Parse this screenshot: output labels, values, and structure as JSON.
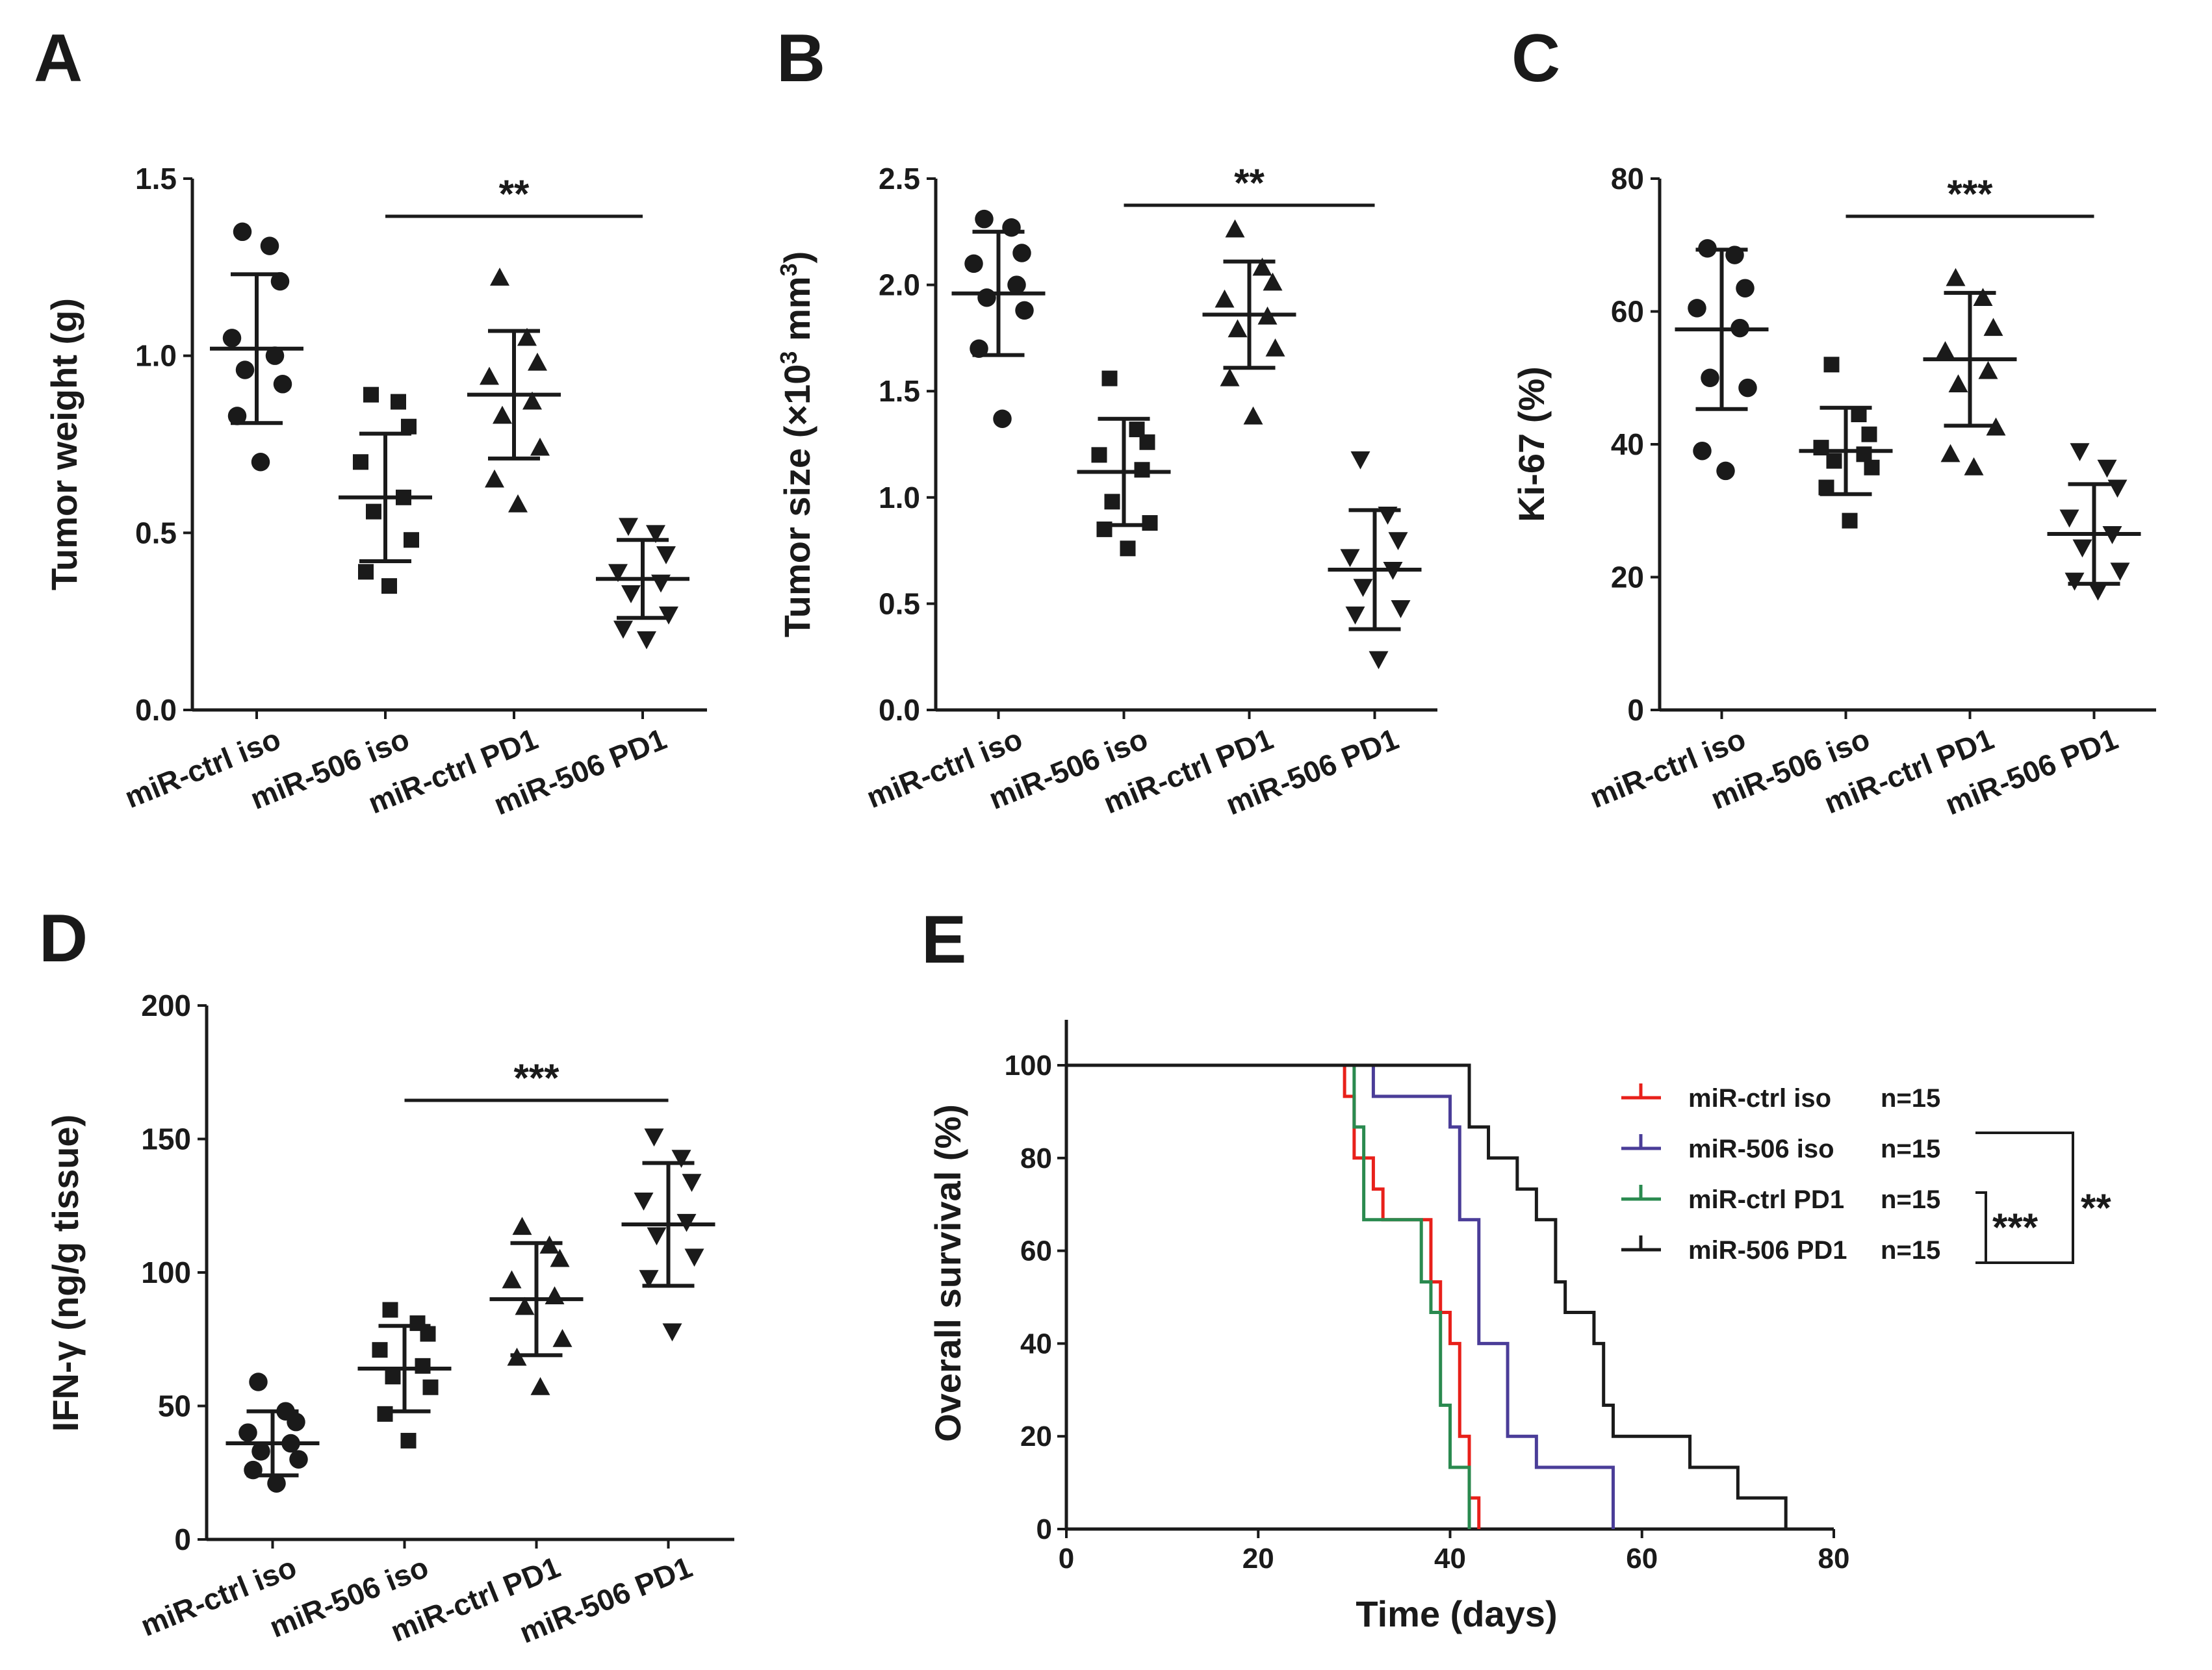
{
  "panel_labels": [
    "A",
    "B",
    "C",
    "D",
    "E"
  ],
  "chart_data": [
    {
      "panel": "A",
      "type": "scatter",
      "ylabel": "Tumor weight (g)",
      "ylim": [
        0,
        1.5
      ],
      "yticks": [
        "0.0",
        "0.5",
        "1.0",
        "1.5"
      ],
      "categories": [
        "miR-ctrl iso",
        "miR-506 iso",
        "miR-ctrl PD1",
        "miR-506 PD1"
      ],
      "markers": [
        "circle",
        "square",
        "triangle-up",
        "triangle-down"
      ],
      "series": [
        {
          "name": "miR-ctrl iso",
          "values": [
            1.35,
            1.31,
            1.21,
            1.05,
            1.0,
            0.96,
            0.92,
            0.83,
            0.7
          ],
          "mean": 1.02,
          "sd": 0.21
        },
        {
          "name": "miR-506 iso",
          "values": [
            0.89,
            0.87,
            0.8,
            0.7,
            0.6,
            0.56,
            0.48,
            0.39,
            0.35
          ],
          "mean": 0.6,
          "sd": 0.18
        },
        {
          "name": "miR-ctrl PD1",
          "values": [
            1.22,
            1.05,
            0.98,
            0.94,
            0.87,
            0.83,
            0.74,
            0.65,
            0.58
          ],
          "mean": 0.89,
          "sd": 0.18
        },
        {
          "name": "miR-506 PD1",
          "values": [
            0.52,
            0.5,
            0.44,
            0.39,
            0.36,
            0.33,
            0.27,
            0.23,
            0.2
          ],
          "mean": 0.37,
          "sd": 0.11
        }
      ],
      "significance": {
        "from": 1,
        "to": 3,
        "label": "**"
      }
    },
    {
      "panel": "B",
      "type": "scatter",
      "ylabel": "Tumor size (×10",
      "ylabel_sup": "3",
      "ylabel_unit": " mm",
      "ylabel_unit_sup": "3",
      "ylabel_end": ")",
      "ylim": [
        0,
        2.5
      ],
      "yticks": [
        "0.0",
        "0.5",
        "1.0",
        "1.5",
        "2.0",
        "2.5"
      ],
      "categories": [
        "miR-ctrl iso",
        "miR-506 iso",
        "miR-ctrl PD1",
        "miR-506 PD1"
      ],
      "markers": [
        "circle",
        "square",
        "triangle-up",
        "triangle-down"
      ],
      "series": [
        {
          "name": "miR-ctrl iso",
          "values": [
            2.31,
            2.27,
            2.15,
            2.1,
            2.0,
            1.94,
            1.88,
            1.7,
            1.37
          ],
          "mean": 1.96,
          "sd": 0.29
        },
        {
          "name": "miR-506 iso",
          "values": [
            1.56,
            1.32,
            1.26,
            1.2,
            1.13,
            0.98,
            0.88,
            0.85,
            0.76
          ],
          "mean": 1.12,
          "sd": 0.25
        },
        {
          "name": "miR-ctrl PD1",
          "values": [
            2.26,
            2.08,
            2.01,
            1.93,
            1.85,
            1.79,
            1.7,
            1.56,
            1.38
          ],
          "mean": 1.86,
          "sd": 0.25
        },
        {
          "name": "miR-506 PD1",
          "values": [
            1.18,
            0.92,
            0.8,
            0.72,
            0.66,
            0.58,
            0.48,
            0.45,
            0.24
          ],
          "mean": 0.66,
          "sd": 0.28
        }
      ],
      "significance": {
        "from": 1,
        "to": 3,
        "label": "**"
      }
    },
    {
      "panel": "C",
      "type": "scatter",
      "ylabel": "Ki-67 (%)",
      "ylim": [
        0,
        80
      ],
      "yticks": [
        "0",
        "20",
        "40",
        "60",
        "80"
      ],
      "categories": [
        "miR-ctrl iso",
        "miR-506 iso",
        "miR-ctrl PD1",
        "miR-506 PD1"
      ],
      "markers": [
        "circle",
        "square",
        "triangle-up",
        "triangle-down"
      ],
      "series": [
        {
          "name": "miR-ctrl iso",
          "values": [
            69.5,
            68.5,
            63.5,
            60.5,
            57.5,
            50.0,
            48.5,
            39.0,
            36.0
          ],
          "mean": 57.3,
          "sd": 12.0
        },
        {
          "name": "miR-506 iso",
          "values": [
            52.0,
            44.5,
            41.5,
            39.5,
            38.5,
            37.5,
            36.5,
            33.5,
            28.5
          ],
          "mean": 39.0,
          "sd": 6.5
        },
        {
          "name": "miR-ctrl PD1",
          "values": [
            65.0,
            62.0,
            57.5,
            54.0,
            51.0,
            49.0,
            42.5,
            38.5,
            36.5
          ],
          "mean": 52.8,
          "sd": 10.0
        },
        {
          "name": "miR-506 PD1",
          "values": [
            39.0,
            36.5,
            33.5,
            29.0,
            26.5,
            24.5,
            21.0,
            19.5,
            18.0
          ],
          "mean": 26.5,
          "sd": 7.5
        }
      ],
      "significance": {
        "from": 1,
        "to": 3,
        "label": "***"
      }
    },
    {
      "panel": "D",
      "type": "scatter",
      "ylabel": "IFN-γ (ng/g tissue)",
      "ylim": [
        0,
        200
      ],
      "yticks": [
        "0",
        "50",
        "100",
        "150",
        "200"
      ],
      "categories": [
        "miR-ctrl iso",
        "miR-506 iso",
        "miR-ctrl PD1",
        "miR-506 PD1"
      ],
      "markers": [
        "circle",
        "square",
        "triangle-up",
        "triangle-down"
      ],
      "series": [
        {
          "name": "miR-ctrl iso",
          "values": [
            59,
            48,
            44,
            40,
            36,
            33,
            30,
            26,
            21
          ],
          "mean": 36,
          "sd": 12
        },
        {
          "name": "miR-506 iso",
          "values": [
            86,
            81,
            77,
            71,
            65,
            61,
            57,
            47,
            37
          ],
          "mean": 64,
          "sd": 16
        },
        {
          "name": "miR-ctrl PD1",
          "values": [
            117,
            110,
            105,
            97,
            91,
            87,
            75,
            68,
            57
          ],
          "mean": 90,
          "sd": 21
        },
        {
          "name": "miR-506 PD1",
          "values": [
            151,
            143,
            134,
            127,
            119,
            114,
            106,
            98,
            78
          ],
          "mean": 118,
          "sd": 23
        }
      ],
      "significance": {
        "from": 1,
        "to": 3,
        "label": "***"
      }
    },
    {
      "panel": "E",
      "type": "line",
      "subtype": "kaplan-meier",
      "title": "",
      "xlabel": "Time (days)",
      "ylabel": "Overall survival (%)",
      "xlim": [
        0,
        80
      ],
      "ylim": [
        0,
        100
      ],
      "xticks": [
        "0",
        "20",
        "40",
        "60",
        "80"
      ],
      "yticks": [
        "0",
        "20",
        "40",
        "60",
        "80",
        "100"
      ],
      "series": [
        {
          "name": "miR-ctrl iso",
          "n_label": "n=15",
          "color": "#e8201a",
          "times": [
            0,
            29,
            30,
            32,
            33,
            38,
            39,
            40,
            41,
            42,
            43
          ],
          "survival": [
            100,
            93.3,
            80,
            73.3,
            66.7,
            53.3,
            46.7,
            40,
            20,
            6.7,
            0
          ]
        },
        {
          "name": "miR-506 iso",
          "n_label": "n=15",
          "color": "#4a3d98",
          "times": [
            0,
            32,
            40,
            41,
            43,
            46,
            49,
            57
          ],
          "survival": [
            100,
            93.3,
            86.7,
            66.7,
            40,
            20,
            13.3,
            0
          ]
        },
        {
          "name": "miR-ctrl PD1",
          "n_label": "n=15",
          "color": "#2a8a4f",
          "times": [
            0,
            30,
            31,
            37,
            38,
            39,
            40,
            42
          ],
          "survival": [
            100,
            86.7,
            66.7,
            53.3,
            46.7,
            26.7,
            13.3,
            0
          ]
        },
        {
          "name": "miR-506 PD1",
          "n_label": "n=15",
          "color": "#1a1a1a",
          "times": [
            0,
            42,
            44,
            47,
            49,
            51,
            52,
            55,
            56,
            57,
            59,
            65,
            70,
            75
          ],
          "survival": [
            100,
            86.7,
            80,
            73.3,
            66.7,
            53.3,
            46.7,
            40,
            26.7,
            20,
            20,
            13.3,
            6.7,
            0
          ]
        }
      ],
      "comparisons": [
        {
          "between": [
            "miR-506 iso",
            "miR-506 PD1"
          ],
          "label": "**"
        },
        {
          "between": [
            "miR-ctrl PD1",
            "miR-506 PD1"
          ],
          "label": "***"
        }
      ]
    }
  ]
}
